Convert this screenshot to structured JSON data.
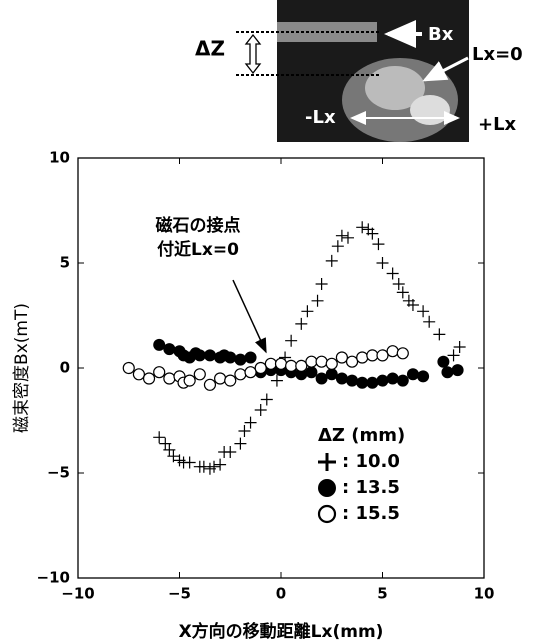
{
  "chart_data": {
    "type": "scatter",
    "x_label": "X方向の移動距離Lx(mm)",
    "y_label": "磁束密度Bx(mT)",
    "xlim": [
      -10,
      10
    ],
    "ylim": [
      -10,
      10
    ],
    "xticks": [
      {
        "value": -10,
        "label": "−10"
      },
      {
        "value": -5,
        "label": "−5"
      },
      0,
      5,
      10
    ],
    "yticks": [
      {
        "value": -10,
        "label": "−10"
      },
      {
        "value": -5,
        "label": "−5"
      },
      0,
      5,
      10
    ],
    "annotation": [
      "磁石の接点",
      "付近Lx=0"
    ],
    "inset_labels": {
      "dz": "ΔZ",
      "bx": "Bx",
      "lx0": "Lx=0",
      "minus": "-Lx",
      "plus": "+Lx"
    },
    "legend_title": "ΔZ (mm)",
    "series": [
      {
        "name": ": 10.0",
        "marker": "plus",
        "color": "#000",
        "x": [
          -6,
          -5.7,
          -5.5,
          -5.3,
          -5,
          -4.8,
          -4.5,
          -4,
          -3.8,
          -3.5,
          -3.3,
          -3,
          -2.8,
          -2.5,
          -2,
          -1.8,
          -1.5,
          -1,
          -0.7,
          -0.2,
          0.2,
          0.5,
          1,
          1.3,
          1.8,
          2,
          2.5,
          2.8,
          3,
          3.3,
          4,
          4.3,
          4.5,
          4.8,
          5,
          5.5,
          5.8,
          6,
          6.3,
          6.5,
          7,
          7.3,
          7.8,
          8.5,
          8.8
        ],
        "values": [
          -3.3,
          -3.6,
          -3.9,
          -4.2,
          -4.4,
          -4.5,
          -4.5,
          -4.7,
          -4.7,
          -4.8,
          -4.7,
          -4.6,
          -4,
          -4,
          -3.6,
          -3,
          -2.6,
          -2,
          -1.5,
          -0.6,
          0.5,
          1.3,
          2.1,
          2.7,
          3.2,
          4,
          5.1,
          5.8,
          6.3,
          6.2,
          6.7,
          6.6,
          6.4,
          5.9,
          5,
          4.5,
          4,
          3.6,
          3.2,
          3,
          2.7,
          2.2,
          1.6,
          0.6,
          1
        ]
      },
      {
        "name": ": 13.5",
        "marker": "filled",
        "color": "#000",
        "x": [
          -6,
          -5.5,
          -5,
          -4.8,
          -4.5,
          -4.2,
          -4,
          -3.5,
          -3,
          -2.8,
          -2.5,
          -2,
          -1.5,
          -1,
          -0.5,
          0,
          0.5,
          1,
          1.5,
          2,
          2.5,
          3,
          3.5,
          4,
          4.5,
          5,
          5.5,
          6,
          6.5,
          7,
          8,
          8.2,
          8.7
        ],
        "values": [
          1.1,
          0.9,
          0.8,
          0.6,
          0.5,
          0.7,
          0.6,
          0.6,
          0.5,
          0.6,
          0.5,
          0.4,
          0.5,
          -0.2,
          -0.1,
          -0.1,
          -0.2,
          -0.3,
          -0.2,
          -0.5,
          -0.3,
          -0.5,
          -0.6,
          -0.7,
          -0.7,
          -0.6,
          -0.5,
          -0.6,
          -0.3,
          -0.4,
          0.3,
          -0.2,
          -0.1
        ]
      },
      {
        "name": ": 15.5",
        "marker": "open",
        "color": "#000",
        "x": [
          -7.5,
          -7,
          -6.5,
          -6,
          -5.5,
          -5,
          -4.8,
          -4.5,
          -4,
          -3.5,
          -3,
          -2.5,
          -2,
          -1.5,
          -1,
          -0.5,
          0,
          0.5,
          1,
          1.5,
          2,
          2.5,
          3,
          3.5,
          4,
          4.5,
          5,
          5.5,
          6
        ],
        "values": [
          0,
          -0.3,
          -0.5,
          -0.2,
          -0.5,
          -0.4,
          -0.7,
          -0.6,
          -0.3,
          -0.8,
          -0.5,
          -0.6,
          -0.3,
          -0.2,
          0,
          0.2,
          0.2,
          0.1,
          0.1,
          0.3,
          0.3,
          0.2,
          0.5,
          0.3,
          0.5,
          0.6,
          0.6,
          0.8,
          0.7
        ]
      }
    ]
  }
}
